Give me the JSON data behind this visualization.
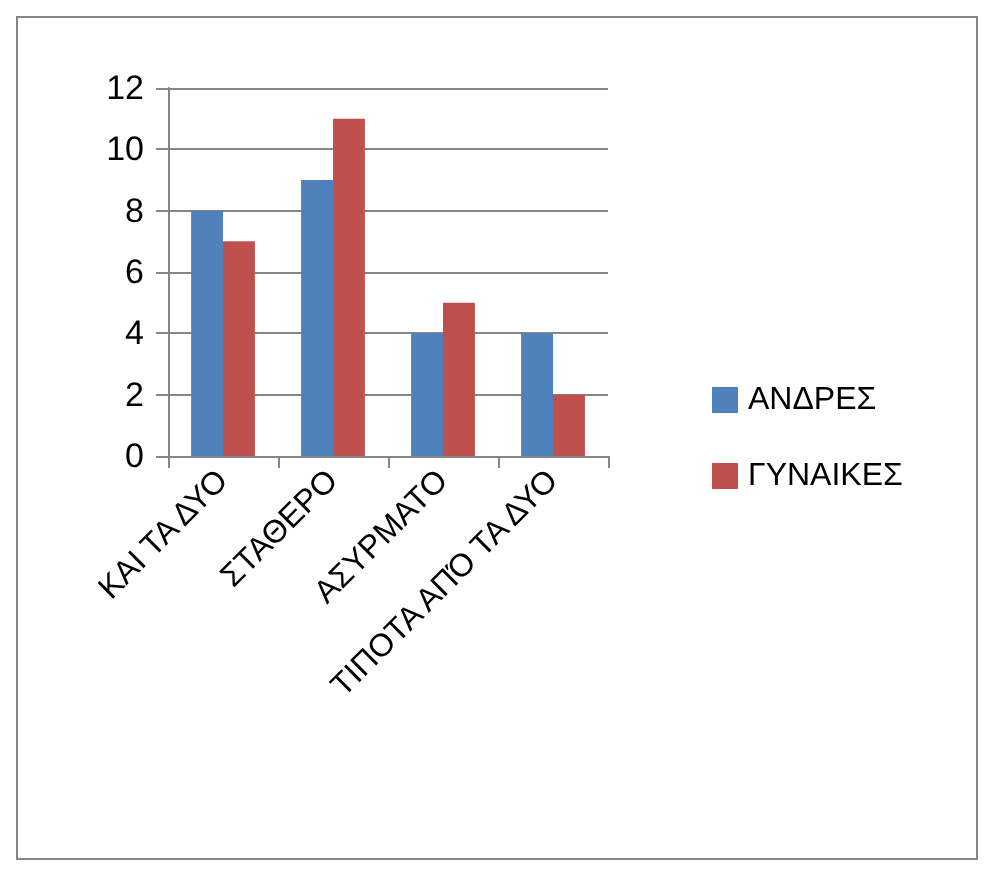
{
  "chart_data": {
    "type": "bar",
    "categories": [
      "ΚΑΙ ΤΑ ΔΥΟ",
      "ΣΤΑΘΕΡΟ",
      "ΑΣΥΡΜΑΤΟ",
      "ΤΙΠΟΤΑ ΑΠΌ ΤΑ ΔΥΟ"
    ],
    "series": [
      {
        "name": "ΑΝΔΡΕΣ",
        "color": "#4f81bd",
        "values": [
          8,
          9,
          4,
          4
        ]
      },
      {
        "name": "ΓΥΝΑΙΚΕΣ",
        "color": "#c0504d",
        "values": [
          7,
          11,
          5,
          2
        ]
      }
    ],
    "ylim": [
      0,
      12
    ],
    "yticks": [
      0,
      2,
      4,
      6,
      8,
      10,
      12
    ],
    "grid": "y",
    "legend": "right"
  }
}
